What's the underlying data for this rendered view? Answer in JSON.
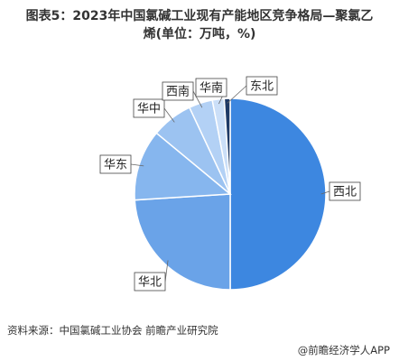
{
  "chart_data": {
    "type": "pie",
    "title": "图表5：2023年中国氯碱工业现有产能地区竞争格局—聚氯乙烯(单位：万吨，%)",
    "categories": [
      "西北",
      "华北",
      "华东",
      "华中",
      "西南",
      "华南",
      "东北"
    ],
    "values": [
      50,
      24,
      12,
      7,
      4,
      2,
      1
    ],
    "colors": [
      "#3d87e0",
      "#6aa3e8",
      "#86b6ee",
      "#9cc3f1",
      "#b3d1f5",
      "#cbdff8",
      "#1e3a66"
    ],
    "source": "资料来源：中国氯碱工业协会 前瞻产业研究院",
    "credit": "@前瞻经济学人APP"
  }
}
